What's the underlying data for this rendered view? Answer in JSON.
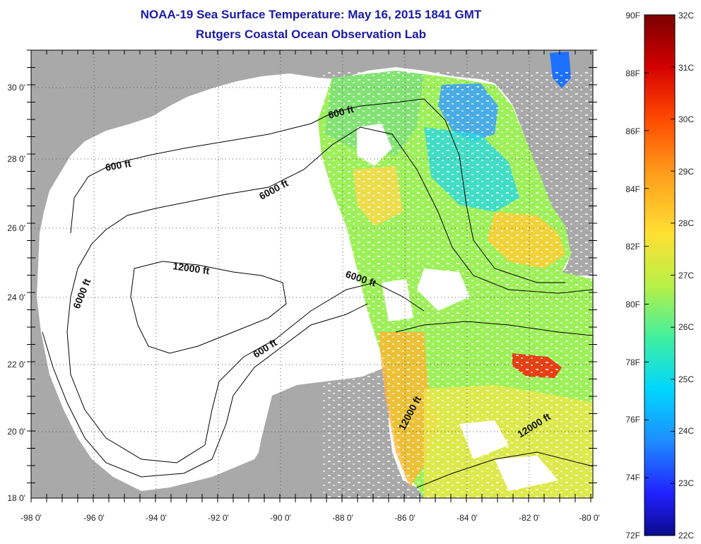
{
  "header": {
    "title": "NOAA-19 Sea Surface Temperature:  May 16, 2015 1841 GMT",
    "subtitle": "Rutgers Coastal Ocean Observation Lab"
  },
  "map": {
    "lon_labels": [
      "-98 0'",
      "-96 0'",
      "-94 0'",
      "-92 0'",
      "-90 0'",
      "-88 0'",
      "-86 0'",
      "-84 0'",
      "-82 0'",
      "-80 0'"
    ],
    "lat_labels": [
      "30 0'",
      "28 0'",
      "26 0'",
      "24 0'",
      "22 0'",
      "20 0'",
      "18 0'"
    ],
    "contour_labels": [
      "600 ft",
      "600 ft",
      "6000 ft",
      "12000 ft",
      "6000 ft",
      "6000 ft",
      "600 ft",
      "12000 ft",
      "12000 ft"
    ],
    "colors": {
      "land": "#a9a9a9",
      "water_nodata": "#ffffff",
      "contour": "#000000",
      "grid": "#555555"
    }
  },
  "colorbar": {
    "fahrenheit_labels": [
      "90F",
      "88F",
      "86F",
      "84F",
      "82F",
      "80F",
      "78F",
      "76F",
      "74F",
      "72F"
    ],
    "celsius_labels": [
      "32C",
      "31C",
      "30C",
      "29C",
      "28C",
      "27C",
      "26C",
      "25C",
      "24C",
      "23C",
      "22C"
    ],
    "gradient": [
      "#7a0000",
      "#d40000",
      "#ff4a00",
      "#ff9a1a",
      "#ffe033",
      "#b8f046",
      "#40f0a0",
      "#00d6ff",
      "#1e8cff",
      "#2020ff",
      "#0a0a8c"
    ]
  }
}
